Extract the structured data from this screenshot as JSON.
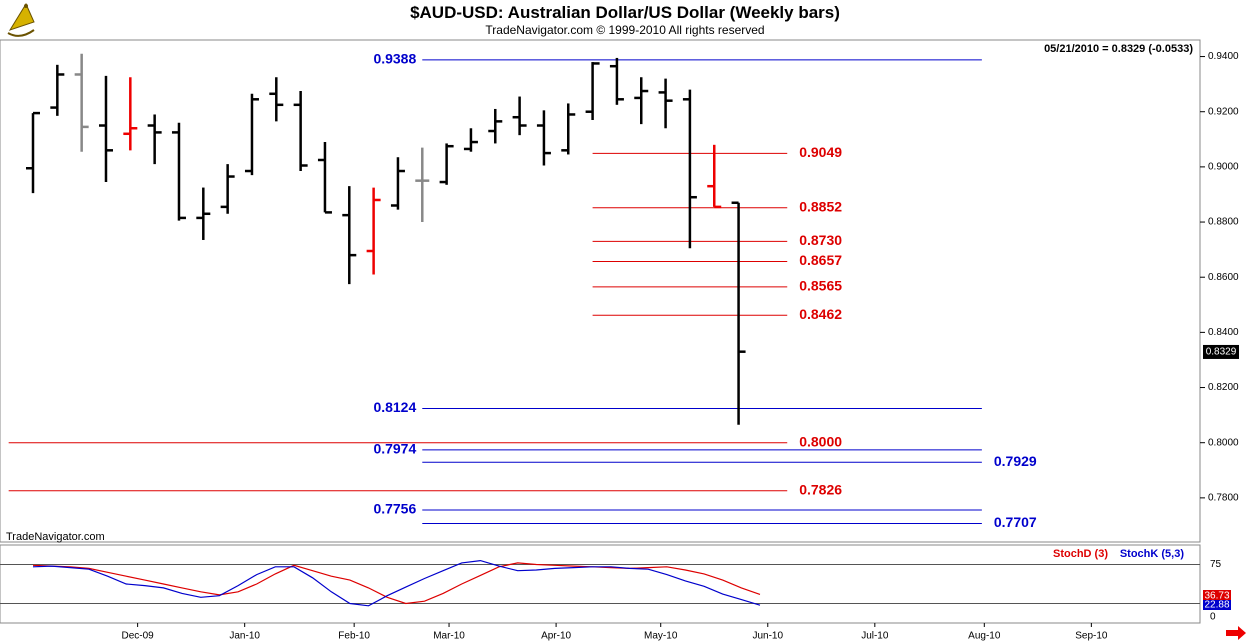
{
  "header": {
    "title": "$AUD-USD:  Australian Dollar/US Dollar  (Weekly bars)",
    "subtitle": "TradeNavigator.com © 1999-2010 All rights reserved",
    "last_quote": "05/21/2010 = 0.8329 (-0.0533)",
    "watermark": "TradeNavigator.com"
  },
  "colors": {
    "up_bar": "#000000",
    "neutral_bar": "#888888",
    "signal_bar": "#ee0000",
    "blue_level": "#0000cc",
    "red_level": "#dd0000",
    "stoch_d": "#dd0000",
    "stoch_k": "#0000cc"
  },
  "icons": {
    "logo": "sextant-icon",
    "scroll": "scroll-right-arrow-icon"
  },
  "chart_data": [
    {
      "type": "bar",
      "subtype": "ohlc",
      "title": "$AUD-USD:  Australian Dollar/US Dollar  (Weekly bars)",
      "ylim": [
        0.764,
        0.946
      ],
      "yticks": [
        "0.9400",
        "0.9200",
        "0.9000",
        "0.8800",
        "0.8600",
        "0.8400",
        "0.8200",
        "0.8000",
        "0.7800"
      ],
      "ytick_values": [
        0.94,
        0.92,
        0.9,
        0.88,
        0.86,
        0.84,
        0.82,
        0.8,
        0.78
      ],
      "last_price": "0.8329",
      "last_price_value": 0.8329,
      "x_labels": [
        {
          "label": "Dec-09",
          "week": 4.3
        },
        {
          "label": "Jan-10",
          "week": 8.7
        },
        {
          "label": "Feb-10",
          "week": 13.2
        },
        {
          "label": "Mar-10",
          "week": 17.1
        },
        {
          "label": "Apr-10",
          "week": 21.5
        },
        {
          "label": "May-10",
          "week": 25.8
        },
        {
          "label": "Jun-10",
          "week": 30.2
        },
        {
          "label": "Jul-10",
          "week": 34.6
        },
        {
          "label": "Aug-10",
          "week": 39.1
        },
        {
          "label": "Sep-10",
          "week": 43.5
        }
      ],
      "bars": [
        {
          "o": 0.8995,
          "h": 0.9195,
          "l": 0.8905,
          "c": 0.9195,
          "color": "up"
        },
        {
          "o": 0.9215,
          "h": 0.937,
          "l": 0.9185,
          "c": 0.9335,
          "color": "up"
        },
        {
          "o": 0.9335,
          "h": 0.941,
          "l": 0.9055,
          "c": 0.9145,
          "color": "neutral"
        },
        {
          "o": 0.915,
          "h": 0.933,
          "l": 0.8945,
          "c": 0.906,
          "color": "up"
        },
        {
          "o": 0.912,
          "h": 0.9325,
          "l": 0.906,
          "c": 0.914,
          "color": "signal"
        },
        {
          "o": 0.915,
          "h": 0.919,
          "l": 0.901,
          "c": 0.9125,
          "color": "up"
        },
        {
          "o": 0.9125,
          "h": 0.916,
          "l": 0.8805,
          "c": 0.8815,
          "color": "up"
        },
        {
          "o": 0.8815,
          "h": 0.8925,
          "l": 0.8735,
          "c": 0.883,
          "color": "up"
        },
        {
          "o": 0.8855,
          "h": 0.901,
          "l": 0.883,
          "c": 0.8965,
          "color": "up"
        },
        {
          "o": 0.8985,
          "h": 0.9265,
          "l": 0.897,
          "c": 0.9245,
          "color": "up"
        },
        {
          "o": 0.9265,
          "h": 0.9325,
          "l": 0.9165,
          "c": 0.9225,
          "color": "up"
        },
        {
          "o": 0.9225,
          "h": 0.9275,
          "l": 0.8985,
          "c": 0.9005,
          "color": "up"
        },
        {
          "o": 0.9025,
          "h": 0.909,
          "l": 0.8835,
          "c": 0.8835,
          "color": "up"
        },
        {
          "o": 0.8825,
          "h": 0.893,
          "l": 0.8575,
          "c": 0.868,
          "color": "up"
        },
        {
          "o": 0.8695,
          "h": 0.8925,
          "l": 0.861,
          "c": 0.888,
          "color": "signal"
        },
        {
          "o": 0.886,
          "h": 0.9035,
          "l": 0.8845,
          "c": 0.8985,
          "color": "up"
        },
        {
          "o": 0.895,
          "h": 0.907,
          "l": 0.88,
          "c": 0.895,
          "color": "neutral"
        },
        {
          "o": 0.8945,
          "h": 0.9085,
          "l": 0.8935,
          "c": 0.9075,
          "color": "up"
        },
        {
          "o": 0.9065,
          "h": 0.914,
          "l": 0.9055,
          "c": 0.909,
          "color": "up"
        },
        {
          "o": 0.913,
          "h": 0.921,
          "l": 0.9085,
          "c": 0.9165,
          "color": "up"
        },
        {
          "o": 0.918,
          "h": 0.9255,
          "l": 0.9115,
          "c": 0.915,
          "color": "up"
        },
        {
          "o": 0.915,
          "h": 0.9205,
          "l": 0.9005,
          "c": 0.905,
          "color": "up"
        },
        {
          "o": 0.906,
          "h": 0.923,
          "l": 0.9045,
          "c": 0.919,
          "color": "up"
        },
        {
          "o": 0.92,
          "h": 0.938,
          "l": 0.917,
          "c": 0.9375,
          "color": "up"
        },
        {
          "o": 0.9365,
          "h": 0.9395,
          "l": 0.9225,
          "c": 0.9245,
          "color": "up"
        },
        {
          "o": 0.925,
          "h": 0.9325,
          "l": 0.9155,
          "c": 0.9275,
          "color": "up"
        },
        {
          "o": 0.927,
          "h": 0.932,
          "l": 0.914,
          "c": 0.924,
          "color": "up"
        },
        {
          "o": 0.9245,
          "h": 0.928,
          "l": 0.8705,
          "c": 0.889,
          "color": "up"
        },
        {
          "o": 0.893,
          "h": 0.908,
          "l": 0.8855,
          "c": 0.8855,
          "color": "signal"
        },
        {
          "o": 0.887,
          "h": 0.887,
          "l": 0.8065,
          "c": 0.833,
          "color": "up"
        }
      ],
      "levels": [
        {
          "label": "0.9388",
          "value": 0.9388,
          "color": "blue",
          "from_week": 16,
          "to_week": 39,
          "label_side": "left"
        },
        {
          "label": "0.9049",
          "value": 0.9049,
          "color": "red",
          "from_week": 23,
          "to_week": 31,
          "label_side": "right"
        },
        {
          "label": "0.8852",
          "value": 0.8852,
          "color": "red",
          "from_week": 23,
          "to_week": 31,
          "label_side": "right"
        },
        {
          "label": "0.8730",
          "value": 0.873,
          "color": "red",
          "from_week": 23,
          "to_week": 31,
          "label_side": "right"
        },
        {
          "label": "0.8657",
          "value": 0.8657,
          "color": "red",
          "from_week": 23,
          "to_week": 31,
          "label_side": "right"
        },
        {
          "label": "0.8565",
          "value": 0.8565,
          "color": "red",
          "from_week": 23,
          "to_week": 31,
          "label_side": "right"
        },
        {
          "label": "0.8462",
          "value": 0.8462,
          "color": "red",
          "from_week": 23,
          "to_week": 31,
          "label_side": "right"
        },
        {
          "label": "0.8124",
          "value": 0.8124,
          "color": "blue",
          "from_week": 16,
          "to_week": 39,
          "label_side": "left"
        },
        {
          "label": "0.8000",
          "value": 0.8,
          "color": "red",
          "from_week": -1,
          "to_week": 31,
          "label_side": "right"
        },
        {
          "label": "0.7974",
          "value": 0.7974,
          "color": "blue",
          "from_week": 16,
          "to_week": 39,
          "label_side": "left"
        },
        {
          "label": "0.7929",
          "value": 0.7929,
          "color": "blue",
          "from_week": 16,
          "to_week": 39,
          "label_side": "right"
        },
        {
          "label": "0.7826",
          "value": 0.7826,
          "color": "red",
          "from_week": -1,
          "to_week": 31,
          "label_side": "right"
        },
        {
          "label": "0.7756",
          "value": 0.7756,
          "color": "blue",
          "from_week": 16,
          "to_week": 39,
          "label_side": "left"
        },
        {
          "label": "0.7707",
          "value": 0.7707,
          "color": "blue",
          "from_week": 16,
          "to_week": 39,
          "label_side": "right"
        }
      ]
    },
    {
      "type": "line",
      "title": "",
      "ylim": [
        0,
        100
      ],
      "yticks": [
        "75",
        "25",
        "0"
      ],
      "ytick_values": [
        75,
        25,
        0
      ],
      "reference_lines": [
        75,
        25
      ],
      "legend": [
        "StochD (3)",
        "StochK (5,3)"
      ],
      "last_values": {
        "d": "36.73",
        "k": "22.88"
      },
      "series": [
        {
          "name": "StochD (3)",
          "color": "red",
          "values": [
            74,
            73,
            72,
            70,
            65,
            60,
            55,
            50,
            45,
            40,
            36,
            40,
            50,
            63,
            74,
            67,
            60,
            55,
            45,
            33,
            25,
            28,
            38,
            50,
            61,
            72,
            77,
            75,
            74,
            73,
            72,
            71,
            70,
            71,
            72,
            68,
            63,
            55,
            45,
            36.73
          ]
        },
        {
          "name": "StochK (5,3)",
          "color": "blue",
          "values": [
            72,
            73,
            71,
            69,
            60,
            50,
            48,
            45,
            38,
            33,
            35,
            48,
            62,
            72,
            72,
            58,
            40,
            25,
            22,
            35,
            46,
            57,
            67,
            77,
            80,
            73,
            67,
            68,
            70,
            71,
            72,
            72,
            70,
            69,
            62,
            54,
            47,
            37,
            30,
            22.88
          ]
        }
      ]
    }
  ]
}
